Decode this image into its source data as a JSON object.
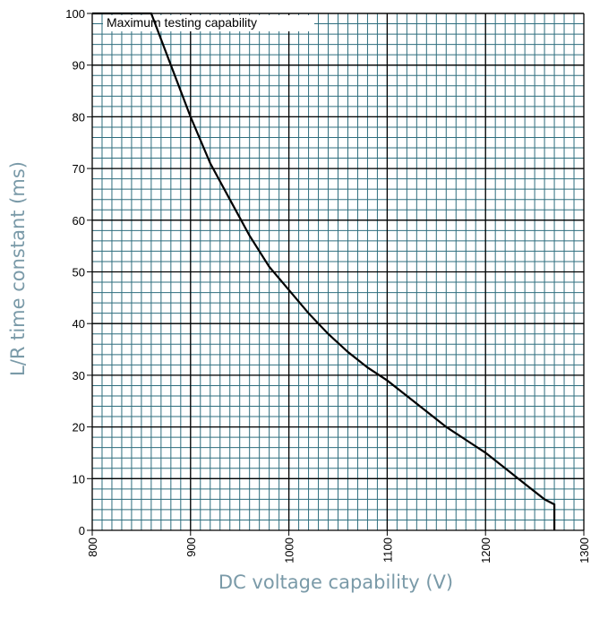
{
  "chart_data": {
    "type": "line",
    "title": "",
    "annotation": "Maximum testing capability",
    "xlabel": "DC voltage capability (V)",
    "ylabel": "L/R time constant (ms)",
    "xlim": [
      800,
      1300
    ],
    "ylim": [
      0,
      100
    ],
    "xticks": [
      800,
      900,
      1000,
      1100,
      1200,
      1300
    ],
    "yticks": [
      0,
      10,
      20,
      30,
      40,
      50,
      60,
      70,
      80,
      90,
      100
    ],
    "grid": true,
    "minor_grid_color": "#2e6e7e",
    "line_color": "#000000",
    "axis_label_color": "#7a9aa8",
    "series": [
      {
        "x": [
          800,
          860,
          880,
          900,
          920,
          940,
          960,
          980,
          1000,
          1020,
          1040,
          1060,
          1080,
          1100,
          1120,
          1140,
          1160,
          1180,
          1200,
          1220,
          1240,
          1260,
          1270,
          1270
        ],
        "y": [
          100,
          100,
          90,
          80,
          71,
          64,
          57,
          51,
          46.5,
          42,
          38,
          34.5,
          31.5,
          29,
          26,
          23,
          20,
          17.5,
          15,
          12,
          9,
          6,
          5,
          0
        ]
      }
    ]
  }
}
